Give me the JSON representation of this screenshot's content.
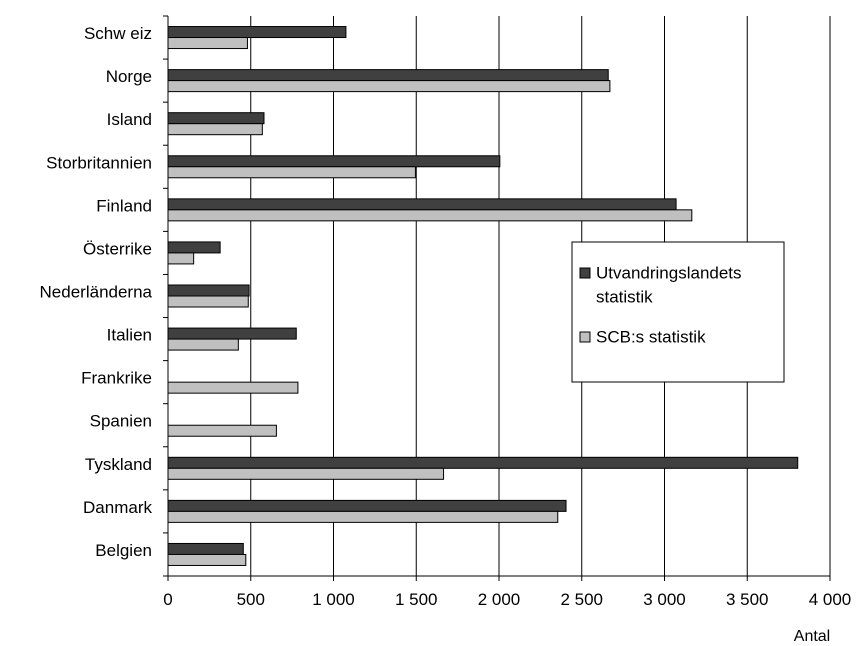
{
  "chart_data": {
    "type": "bar",
    "orientation": "horizontal",
    "categories": [
      "Schw eiz",
      "Norge",
      "Island",
      "Storbritannien",
      "Finland",
      "Österrike",
      "Nederländerna",
      "Italien",
      "Frankrike",
      "Spanien",
      "Tyskland",
      "Danmark",
      "Belgien"
    ],
    "series": [
      {
        "name": "Utvandringslandets statistik",
        "values": [
          1075,
          2660,
          580,
          2005,
          3070,
          315,
          490,
          775,
          null,
          null,
          3805,
          2405,
          455
        ],
        "color": "#404040"
      },
      {
        "name": "SCB:s statistik",
        "values": [
          480,
          2670,
          570,
          1495,
          3165,
          155,
          485,
          425,
          785,
          655,
          1665,
          2355,
          470
        ],
        "color": "#c0c0c0"
      }
    ],
    "xlim": [
      0,
      4000
    ],
    "xticks": [
      0,
      500,
      1000,
      1500,
      2000,
      2500,
      3000,
      3500,
      4000
    ],
    "xtick_labels": [
      "0",
      "500",
      "1 000",
      "1 500",
      "2 000",
      "2 500",
      "3 000",
      "3 500",
      "4 000"
    ],
    "xlabel": "Antal",
    "ylabel": "",
    "title": "",
    "grid": "vertical",
    "legend_position": "right",
    "legend_lines": [
      [
        "Utvandringslandets",
        "statistik"
      ],
      [
        "SCB:s statistik"
      ]
    ]
  }
}
